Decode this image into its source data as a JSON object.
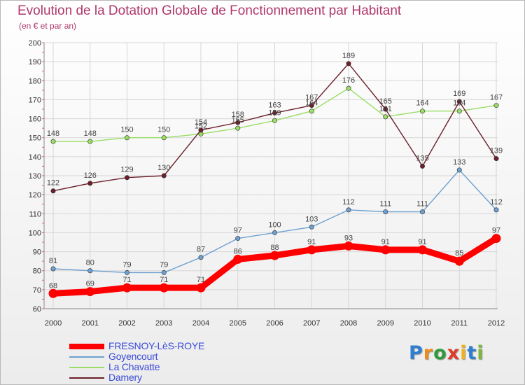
{
  "title": "Evolution de la Dotation Globale de Fonctionnement par Habitant",
  "subtitle": "(en € et par an)",
  "logo": {
    "text": "Proxiti",
    "letters": [
      "P",
      "r",
      "o",
      "x",
      "i",
      "t",
      "i"
    ],
    "colors": [
      "#2f7fd0",
      "#f08a1c",
      "#2f9a3a",
      "#e03a2a",
      "#f0b21c",
      "#2f7fd0",
      "#7ab83a"
    ]
  },
  "colors": {
    "fresnoy": "#ff0000",
    "goyencourt": "#6ea0cf",
    "chavatte": "#99dd66",
    "damery": "#6b1f2a"
  },
  "chart_data": {
    "type": "line",
    "title": "Evolution de la Dotation Globale de Fonctionnement par Habitant",
    "ylabel": "(en € et par an)",
    "ylim": [
      60,
      200
    ],
    "yticks": [
      60,
      70,
      80,
      90,
      100,
      110,
      120,
      130,
      140,
      150,
      160,
      170,
      180,
      190,
      200
    ],
    "x": [
      "2000",
      "2001",
      "2002",
      "2003",
      "2004",
      "2005",
      "2006",
      "2007",
      "2008",
      "2009",
      "2010",
      "2011",
      "2012"
    ],
    "grid": true,
    "legend": "bottom-left",
    "series": [
      {
        "name": "FRESNOY-LèS-ROYE",
        "key": "fresnoy",
        "values": [
          68,
          69,
          71,
          71,
          71,
          86,
          88,
          91,
          93,
          91,
          91,
          85,
          97
        ]
      },
      {
        "name": "Goyencourt",
        "key": "goyencourt",
        "values": [
          81,
          80,
          79,
          79,
          87,
          97,
          100,
          103,
          112,
          111,
          111,
          133,
          112
        ]
      },
      {
        "name": "La Chavatte",
        "key": "chavatte",
        "values": [
          148,
          148,
          150,
          150,
          152,
          155,
          159,
          164,
          176,
          161,
          164,
          164,
          167
        ]
      },
      {
        "name": "Damery",
        "key": "damery",
        "values": [
          122,
          126,
          129,
          130,
          154,
          158,
          163,
          167,
          189,
          165,
          135,
          169,
          139
        ]
      }
    ]
  }
}
